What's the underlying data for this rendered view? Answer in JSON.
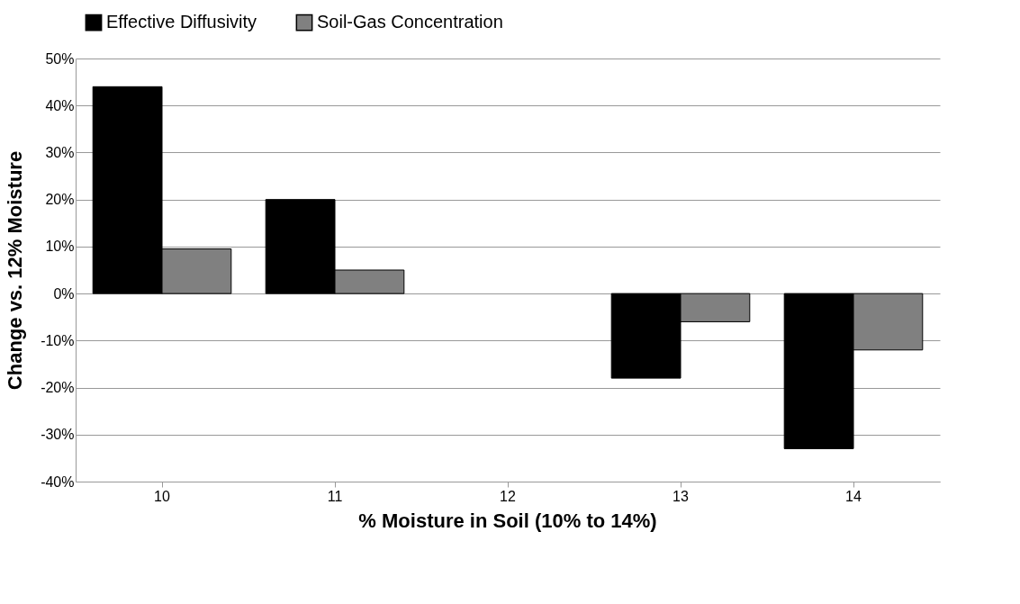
{
  "chart_data": {
    "type": "bar",
    "xlabel": "% Moisture in Soil (10% to 14%)",
    "ylabel": "Change vs. 12% Moisture",
    "categories": [
      "10",
      "11",
      "12",
      "13",
      "14"
    ],
    "series": [
      {
        "name": "Effective Diffusivity",
        "color": "#000000",
        "values": [
          44,
          20,
          0,
          -18,
          -33
        ]
      },
      {
        "name": "Soil-Gas Concentration",
        "color": "#808080",
        "values": [
          9.5,
          5,
          0,
          -6,
          -12
        ]
      }
    ],
    "ylim": [
      -40,
      50
    ],
    "yticks": [
      {
        "value": -40,
        "label": "-40%"
      },
      {
        "value": -30,
        "label": "-30%"
      },
      {
        "value": -20,
        "label": "-20%"
      },
      {
        "value": -10,
        "label": "-10%"
      },
      {
        "value": 0,
        "label": "0%"
      },
      {
        "value": 10,
        "label": "10%"
      },
      {
        "value": 20,
        "label": "20%"
      },
      {
        "value": 30,
        "label": "30%"
      },
      {
        "value": 40,
        "label": "40%"
      },
      {
        "value": 50,
        "label": "50%"
      }
    ],
    "grid": "y",
    "legend": "top"
  }
}
